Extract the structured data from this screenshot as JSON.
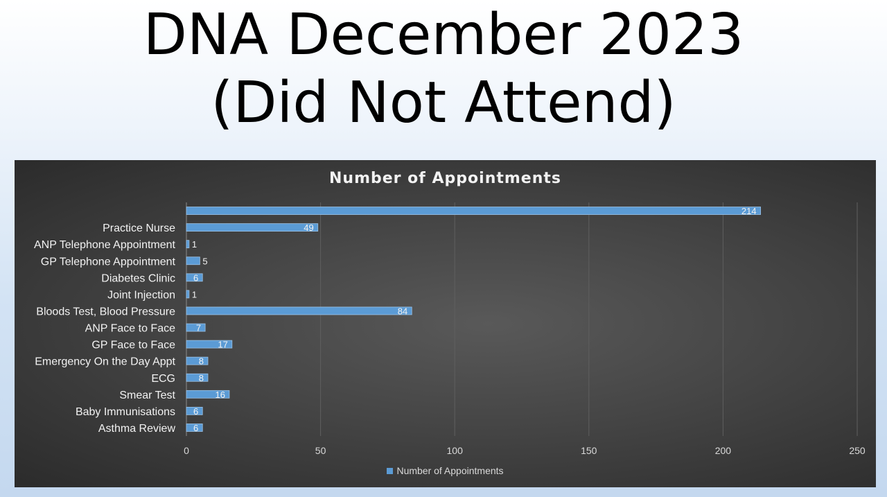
{
  "slide": {
    "title_line1": "DNA December 2023",
    "title_line2": "(Did Not Attend)"
  },
  "chart_data": {
    "type": "bar",
    "orientation": "horizontal",
    "title": "Number of Appointments",
    "categories": [
      "",
      "Practice Nurse",
      "ANP Telephone Appointment",
      "GP Telephone Appointment",
      "Diabetes Clinic",
      "Joint Injection",
      "Bloods Test, Blood Pressure",
      "ANP Face to Face",
      "GP Face to Face",
      "Emergency On the Day Appt",
      "ECG",
      "Smear Test",
      "Baby Immunisations",
      "Asthma Review"
    ],
    "series": [
      {
        "name": "Number of Appointments",
        "values": [
          214,
          49,
          1,
          5,
          6,
          1,
          84,
          7,
          17,
          8,
          8,
          16,
          6,
          6
        ]
      }
    ],
    "xlim": [
      0,
      250
    ],
    "xticks": [
      0,
      50,
      100,
      150,
      200,
      250
    ],
    "grid": "vertical",
    "legend_position": "bottom",
    "data_labels": true,
    "colors": {
      "bar": "#5b9bd5",
      "bar_edge": "#9dc3e6",
      "panel": "#404040",
      "text": "#f2f2f2",
      "grid": "#5f5f5f"
    }
  }
}
